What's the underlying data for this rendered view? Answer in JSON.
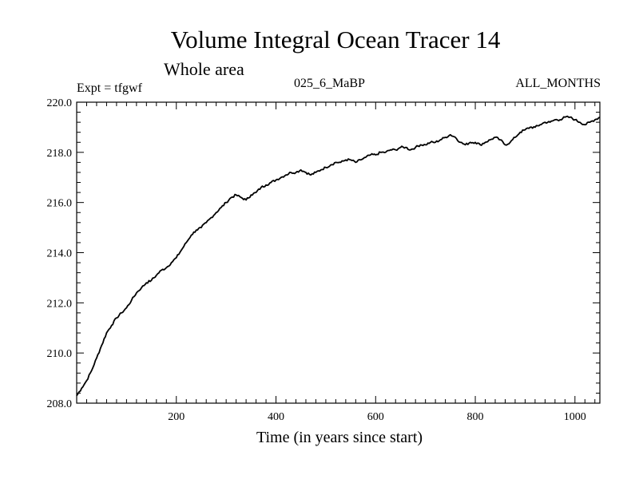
{
  "header": {
    "title": "Volume Integral Ocean Tracer 14",
    "subtitle": "Whole area",
    "experiment": "Expt = tfgwf",
    "run_label": "025_6_MaBP",
    "months_label": "ALL_MONTHS"
  },
  "chart_data": {
    "type": "line",
    "title": "Volume Integral Ocean Tracer 14",
    "subtitle": "Whole area",
    "xlabel": "Time (in years since start)",
    "ylabel": "",
    "xlim": [
      0,
      1050
    ],
    "ylim": [
      208.0,
      220.0
    ],
    "x_ticks": [
      200,
      400,
      600,
      800,
      1000
    ],
    "y_ticks": [
      "208.0",
      "210.0",
      "212.0",
      "214.0",
      "216.0",
      "218.0",
      "220.0"
    ],
    "grid": false,
    "series": [
      {
        "color": "#000000",
        "points": [
          [
            0,
            208.3
          ],
          [
            10,
            208.6
          ],
          [
            20,
            208.9
          ],
          [
            30,
            209.3
          ],
          [
            40,
            209.8
          ],
          [
            50,
            210.3
          ],
          [
            60,
            210.8
          ],
          [
            70,
            211.1
          ],
          [
            80,
            211.4
          ],
          [
            90,
            211.6
          ],
          [
            100,
            211.8
          ],
          [
            110,
            212.1
          ],
          [
            120,
            212.4
          ],
          [
            130,
            212.6
          ],
          [
            140,
            212.8
          ],
          [
            150,
            212.9
          ],
          [
            160,
            213.1
          ],
          [
            170,
            213.3
          ],
          [
            180,
            213.4
          ],
          [
            190,
            213.6
          ],
          [
            200,
            213.8
          ],
          [
            210,
            214.1
          ],
          [
            220,
            214.4
          ],
          [
            230,
            214.7
          ],
          [
            240,
            214.9
          ],
          [
            250,
            215.0
          ],
          [
            260,
            215.2
          ],
          [
            270,
            215.4
          ],
          [
            280,
            215.6
          ],
          [
            290,
            215.8
          ],
          [
            300,
            216.0
          ],
          [
            310,
            216.2
          ],
          [
            320,
            216.3
          ],
          [
            330,
            216.2
          ],
          [
            340,
            216.1
          ],
          [
            350,
            216.3
          ],
          [
            360,
            216.4
          ],
          [
            370,
            216.6
          ],
          [
            380,
            216.7
          ],
          [
            390,
            216.8
          ],
          [
            400,
            216.9
          ],
          [
            410,
            217.0
          ],
          [
            420,
            217.1
          ],
          [
            430,
            217.2
          ],
          [
            440,
            217.2
          ],
          [
            450,
            217.3
          ],
          [
            460,
            217.2
          ],
          [
            470,
            217.1
          ],
          [
            480,
            217.2
          ],
          [
            490,
            217.3
          ],
          [
            500,
            217.4
          ],
          [
            510,
            217.5
          ],
          [
            520,
            217.6
          ],
          [
            530,
            217.6
          ],
          [
            540,
            217.7
          ],
          [
            550,
            217.7
          ],
          [
            560,
            217.6
          ],
          [
            570,
            217.7
          ],
          [
            580,
            217.8
          ],
          [
            590,
            217.9
          ],
          [
            600,
            217.9
          ],
          [
            610,
            218.0
          ],
          [
            620,
            218.0
          ],
          [
            630,
            218.1
          ],
          [
            640,
            218.1
          ],
          [
            650,
            218.2
          ],
          [
            660,
            218.2
          ],
          [
            670,
            218.1
          ],
          [
            680,
            218.2
          ],
          [
            690,
            218.3
          ],
          [
            700,
            218.3
          ],
          [
            710,
            218.4
          ],
          [
            720,
            218.4
          ],
          [
            730,
            218.5
          ],
          [
            740,
            218.6
          ],
          [
            750,
            218.7
          ],
          [
            760,
            218.6
          ],
          [
            770,
            218.4
          ],
          [
            780,
            218.3
          ],
          [
            790,
            218.4
          ],
          [
            800,
            218.4
          ],
          [
            810,
            218.3
          ],
          [
            820,
            218.4
          ],
          [
            830,
            218.5
          ],
          [
            840,
            218.6
          ],
          [
            850,
            218.5
          ],
          [
            860,
            218.3
          ],
          [
            870,
            218.4
          ],
          [
            880,
            218.6
          ],
          [
            890,
            218.8
          ],
          [
            900,
            218.9
          ],
          [
            910,
            219.0
          ],
          [
            920,
            219.0
          ],
          [
            930,
            219.1
          ],
          [
            940,
            219.2
          ],
          [
            950,
            219.2
          ],
          [
            960,
            219.3
          ],
          [
            970,
            219.3
          ],
          [
            980,
            219.4
          ],
          [
            990,
            219.4
          ],
          [
            1000,
            219.3
          ],
          [
            1010,
            219.2
          ],
          [
            1020,
            219.1
          ],
          [
            1030,
            219.2
          ],
          [
            1040,
            219.3
          ],
          [
            1050,
            219.4
          ]
        ]
      }
    ]
  }
}
